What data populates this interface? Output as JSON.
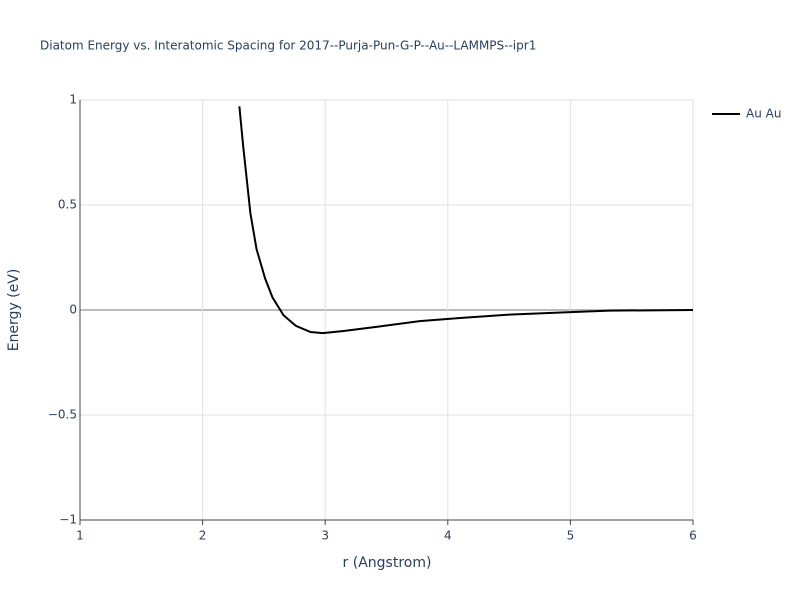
{
  "chart_data": {
    "type": "line",
    "title": "Diatom Energy vs. Interatomic Spacing for 2017--Purja-Pun-G-P--Au--LAMMPS--ipr1",
    "x_label": "r (Angstrom)",
    "y_label": "Energy (eV)",
    "x": [
      2.3,
      2.33,
      2.39,
      2.44,
      2.51,
      2.57,
      2.66,
      2.76,
      2.88,
      2.98,
      3.15,
      3.45,
      3.77,
      4.1,
      4.5,
      5.0,
      5.32,
      6.0
    ],
    "series": [
      {
        "name": "Au Au",
        "color": "#000000",
        "values": [
          0.97,
          0.786,
          0.46,
          0.29,
          0.15,
          0.06,
          -0.025,
          -0.075,
          -0.105,
          -0.11,
          -0.1,
          -0.078,
          -0.053,
          -0.038,
          -0.022,
          -0.01,
          -0.003,
          0
        ]
      }
    ],
    "xlim": [
      1,
      6
    ],
    "xticks": [
      1,
      2,
      3,
      4,
      5,
      6
    ],
    "ylim": [
      -1,
      1
    ],
    "yticks": [
      {
        "value": -1,
        "label": "−1"
      },
      {
        "value": -0.5,
        "label": "−0.5"
      },
      0,
      0.5,
      1
    ],
    "grid": true,
    "legend": "top-right"
  }
}
